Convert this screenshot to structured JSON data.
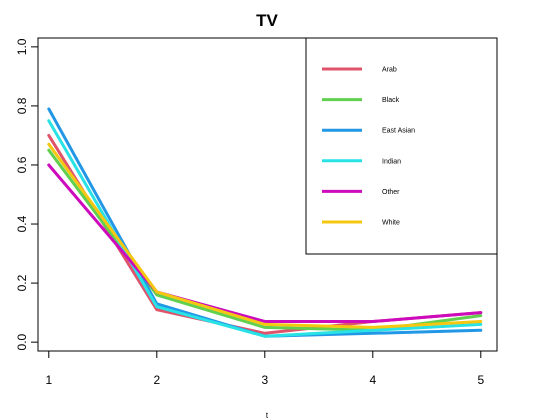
{
  "chart_data": {
    "type": "line",
    "title": "TV",
    "xlabel": "t",
    "ylabel": "",
    "x": [
      1,
      2,
      3,
      4,
      5
    ],
    "xlim": [
      0.9,
      5.15
    ],
    "ylim": [
      -0.03,
      1.03
    ],
    "x_ticks": [
      "1",
      "2",
      "3",
      "4",
      "5"
    ],
    "y_ticks": [
      "0.0",
      "0.2",
      "0.4",
      "0.6",
      "0.8",
      "1.0"
    ],
    "grid": false,
    "legend_position": "top-right",
    "series": [
      {
        "name": "Arab",
        "color": "#DF536B",
        "values": [
          0.7,
          0.11,
          0.03,
          0.07,
          0.1
        ]
      },
      {
        "name": "Black",
        "color": "#61D04F",
        "values": [
          0.65,
          0.16,
          0.05,
          0.04,
          0.09
        ]
      },
      {
        "name": "East Asian",
        "color": "#2297E6",
        "values": [
          0.79,
          0.13,
          0.02,
          0.03,
          0.04
        ]
      },
      {
        "name": "Indian",
        "color": "#28E2E5",
        "values": [
          0.75,
          0.12,
          0.02,
          0.04,
          0.06
        ]
      },
      {
        "name": "Other",
        "color": "#CD0BBC",
        "values": [
          0.6,
          0.17,
          0.07,
          0.07,
          0.1
        ]
      },
      {
        "name": "White",
        "color": "#F5C710",
        "values": [
          0.67,
          0.17,
          0.06,
          0.05,
          0.07
        ]
      }
    ]
  }
}
